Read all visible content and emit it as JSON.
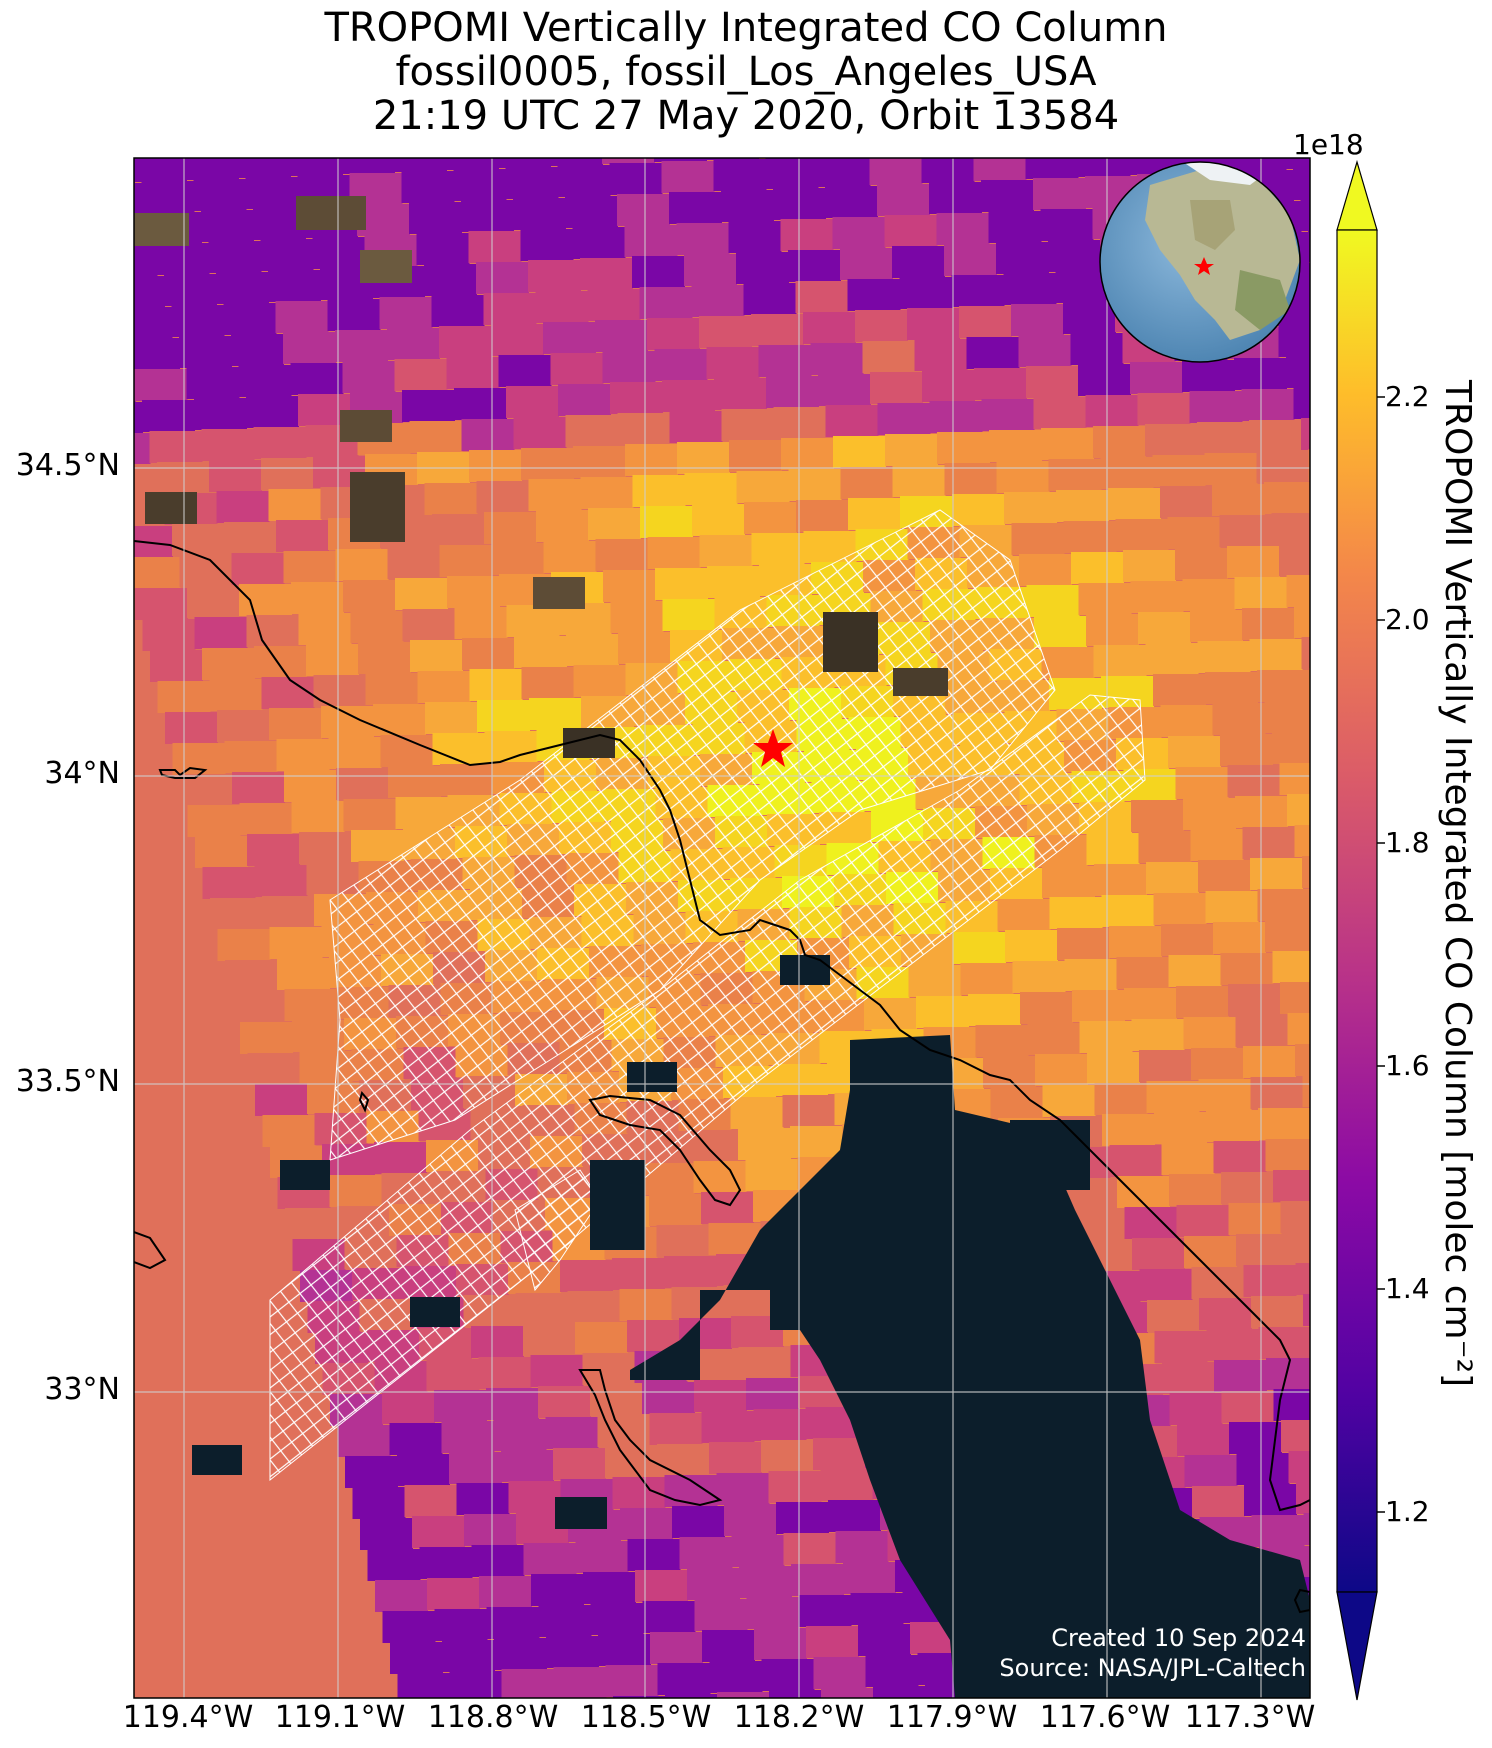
{
  "title": {
    "line1": "TROPOMI Vertically Integrated CO Column",
    "line2": "fossil0005, fossil_Los_Angeles_USA",
    "line3": "21:19 UTC 27 May 2020, Orbit 13584"
  },
  "map": {
    "lon_ticks": [
      "119.4°W",
      "119.1°W",
      "118.8°W",
      "118.5°W",
      "118.2°W",
      "117.9°W",
      "117.6°W",
      "117.3°W"
    ],
    "lat_ticks": [
      "34.5°N",
      "34°N",
      "33.5°N",
      "33°N"
    ],
    "target_marker": "red-star",
    "inset_globe": "north-america-orthographic",
    "credit_line1": "Created 10 Sep 2024",
    "credit_line2": "Source: NASA/JPL-Caltech",
    "colors": {
      "star": "#ff0000",
      "nodata": "#0c1e2b",
      "grid": "#cfcfcf"
    }
  },
  "colorbar": {
    "label": "TROPOMI Vertically Integrated CO Column [molec cm⁻²]",
    "scale_label": "1e18",
    "ticks": [
      "2.2",
      "2.0",
      "1.8",
      "1.6",
      "1.4",
      "1.2"
    ],
    "colormap": "plasma"
  }
}
